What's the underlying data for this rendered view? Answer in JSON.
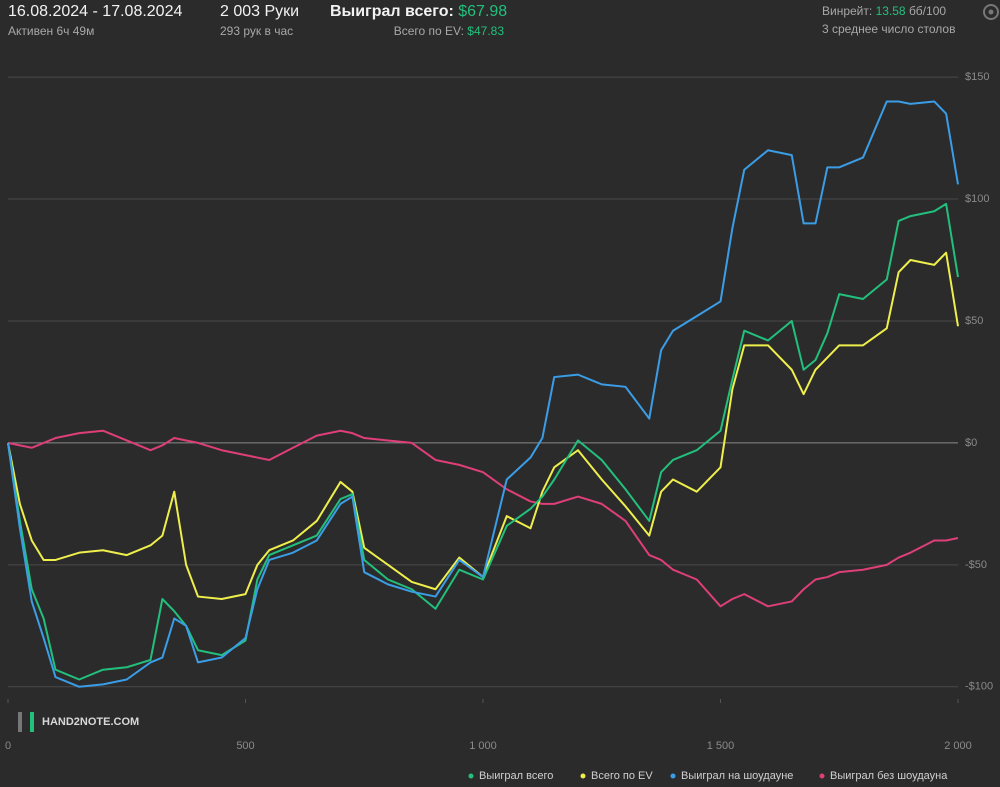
{
  "header": {
    "date_range": "16.08.2024 - 17.08.2024",
    "active": "Активен 6ч 49м",
    "hands": "2 003 Руки",
    "hands_per_hour": "293 рук в час",
    "won_label": "Выиграл всего:",
    "won_value": "$67.98",
    "ev_label": "Всего по EV:",
    "ev_value": "$47.83",
    "winrate_label": "Винрейт:",
    "winrate_value": "13.58",
    "winrate_unit": "бб/100",
    "tables": "3 среднее число столов"
  },
  "watermark": "HAND2NOTE.COM",
  "chart_data": {
    "type": "line",
    "x": [
      0,
      25,
      50,
      75,
      100,
      150,
      200,
      250,
      300,
      325,
      350,
      375,
      400,
      450,
      500,
      525,
      550,
      600,
      650,
      700,
      725,
      750,
      800,
      850,
      900,
      950,
      1000,
      1050,
      1100,
      1125,
      1150,
      1200,
      1250,
      1300,
      1350,
      1375,
      1400,
      1450,
      1500,
      1525,
      1550,
      1600,
      1650,
      1675,
      1700,
      1725,
      1750,
      1800,
      1850,
      1875,
      1900,
      1950,
      1975,
      2000
    ],
    "series": [
      {
        "name": "Выиграл всего",
        "color": "#22c07c",
        "values": [
          0,
          -32,
          -60,
          -72,
          -93,
          -97,
          -93,
          -92,
          -89,
          -64,
          -69,
          -75,
          -85,
          -87,
          -81,
          -56,
          -46,
          -42,
          -38,
          -23,
          -21,
          -48,
          -56,
          -60,
          -68,
          -52,
          -56,
          -34,
          -27,
          -22,
          -15,
          1,
          -7,
          -19,
          -32,
          -12,
          -7,
          -3,
          5,
          26,
          46,
          42,
          50,
          30,
          34,
          45,
          61,
          59,
          67,
          91,
          93,
          95,
          98,
          68
        ]
      },
      {
        "name": "Всего по EV",
        "color": "#eeee4c",
        "values": [
          0,
          -25,
          -40,
          -48,
          -48,
          -45,
          -44,
          -46,
          -42,
          -38,
          -20,
          -50,
          -63,
          -64,
          -62,
          -50,
          -44,
          -40,
          -32,
          -16,
          -20,
          -43,
          -50,
          -57,
          -60,
          -47,
          -55,
          -30,
          -35,
          -20,
          -10,
          -3,
          -15,
          -26,
          -38,
          -20,
          -15,
          -20,
          -10,
          22,
          40,
          40,
          30,
          20,
          30,
          35,
          40,
          40,
          47,
          70,
          75,
          73,
          78,
          47.83
        ]
      },
      {
        "name": "Выиграл на шоудауне",
        "color": "#3b9de6",
        "values": [
          0,
          -35,
          -65,
          -80,
          -96,
          -100,
          -99,
          -97,
          -90,
          -88,
          -72,
          -75,
          -90,
          -88,
          -80,
          -60,
          -48,
          -45,
          -40,
          -25,
          -22,
          -53,
          -58,
          -61,
          -63,
          -48,
          -55,
          -15,
          -6,
          2,
          27,
          28,
          24,
          23,
          10,
          38,
          46,
          52,
          58,
          88,
          112,
          120,
          118,
          90,
          90,
          113,
          113,
          117,
          140,
          140,
          139,
          140,
          135,
          106
        ]
      },
      {
        "name": "Выиграл без шоудауна",
        "color": "#de3f78",
        "values": [
          0,
          -1,
          -2,
          0,
          2,
          4,
          5,
          1,
          -3,
          -1,
          2,
          1,
          0,
          -3,
          -5,
          -6,
          -7,
          -2,
          3,
          5,
          4,
          2,
          1,
          0,
          -7,
          -9,
          -12,
          -19,
          -24,
          -25,
          -25,
          -22,
          -25,
          -32,
          -46,
          -48,
          -52,
          -56,
          -67,
          -64,
          -62,
          -67,
          -65,
          -60,
          -56,
          -55,
          -53,
          -52,
          -50,
          -47,
          -45,
          -40,
          -40,
          -39
        ]
      }
    ],
    "xlim": [
      0,
      2000
    ],
    "xticks": [
      0,
      500,
      {
        "value": 1000,
        "label": "1 000"
      },
      {
        "value": 1500,
        "label": "1 500"
      },
      {
        "value": 2000,
        "label": "2 000"
      }
    ],
    "ylim": [
      -105,
      157
    ],
    "yticks": [
      {
        "value": 150,
        "label": "$150"
      },
      {
        "value": 100,
        "label": "$100"
      },
      {
        "value": 50,
        "label": "$50"
      },
      {
        "value": 0,
        "label": "$0"
      },
      {
        "value": -50,
        "label": "-$50"
      },
      {
        "value": -100,
        "label": "-$100"
      }
    ],
    "grid": true,
    "legend": "bottom"
  }
}
